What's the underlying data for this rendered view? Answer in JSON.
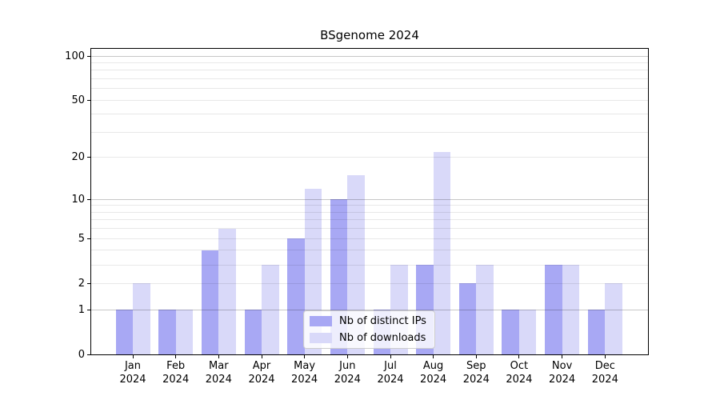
{
  "title": "BSgenome 2024",
  "chart_data": {
    "type": "bar",
    "title": "BSgenome 2024",
    "xlabel": "",
    "ylabel": "",
    "yscale": "log1p",
    "grid": true,
    "legend_position": "lower center",
    "categories": [
      {
        "month": "Jan",
        "year": "2024"
      },
      {
        "month": "Feb",
        "year": "2024"
      },
      {
        "month": "Mar",
        "year": "2024"
      },
      {
        "month": "Apr",
        "year": "2024"
      },
      {
        "month": "May",
        "year": "2024"
      },
      {
        "month": "Jun",
        "year": "2024"
      },
      {
        "month": "Jul",
        "year": "2024"
      },
      {
        "month": "Aug",
        "year": "2024"
      },
      {
        "month": "Sep",
        "year": "2024"
      },
      {
        "month": "Oct",
        "year": "2024"
      },
      {
        "month": "Nov",
        "year": "2024"
      },
      {
        "month": "Dec",
        "year": "2024"
      }
    ],
    "series": [
      {
        "name": "Nb of distinct IPs",
        "color": "#a8a8f4",
        "values": [
          1,
          1,
          4,
          1,
          5,
          10,
          1,
          3,
          2,
          1,
          3,
          1
        ]
      },
      {
        "name": "Nb of downloads",
        "color": "#d9d9f9",
        "values": [
          2,
          1,
          6,
          3,
          12,
          15,
          3,
          22,
          3,
          1,
          3,
          2
        ]
      }
    ],
    "yticks": [
      {
        "label": "100",
        "value": 100
      },
      {
        "label": "50",
        "value": 50
      },
      {
        "label": "20",
        "value": 20
      },
      {
        "label": "10",
        "value": 10
      },
      {
        "label": "5",
        "value": 5
      },
      {
        "label": "2",
        "value": 2
      },
      {
        "label": "1",
        "value": 1
      },
      {
        "label": "0",
        "value": 0
      }
    ],
    "minor_gridlines": [
      2,
      3,
      4,
      5,
      6,
      7,
      8,
      9,
      20,
      30,
      40,
      50,
      60,
      70,
      80,
      90
    ],
    "major_gridlines": [
      1,
      10,
      100
    ],
    "ylim": [
      0,
      113
    ]
  },
  "colors": {
    "background": "#ffffff",
    "spine": "#000000",
    "text": "#000000",
    "major_grid": "rgba(0,0,0,0.22)",
    "minor_grid": "rgba(0,0,0,0.09)",
    "legend_border": "#cccccc",
    "legend_bg": "rgba(255,255,255,0.8)"
  }
}
